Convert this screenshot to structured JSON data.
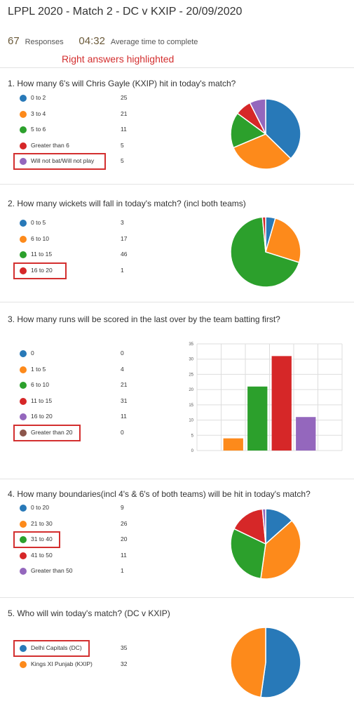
{
  "header": {
    "title": "LPPL 2020 - Match 2 - DC v KXIP - 20/09/2020",
    "responses_count": "67",
    "responses_label": "Responses",
    "avg_time": "04:32",
    "avg_time_label": "Average time to complete",
    "note": "Right answers highlighted"
  },
  "colors": {
    "blue": "#2879b8",
    "orange": "#fd8a1b",
    "green": "#2ca02c",
    "red": "#d62728",
    "purple": "#9467bd",
    "brown": "#8c564b",
    "highlight": "#d32f2f"
  },
  "chart_data": [
    {
      "type": "pie",
      "title": "1.  How many 6's will Chris Gayle (KXIP) hit in today's match?",
      "categories": [
        "0 to 2",
        "3 to 4",
        "5 to 6",
        "Greater than 6",
        "Will not bat/Will not play"
      ],
      "values": [
        25,
        21,
        11,
        5,
        5
      ],
      "highlighted": "Will not bat/Will not play"
    },
    {
      "type": "pie",
      "title": "2.  How many wickets will fall in today's match? (incl both teams)",
      "categories": [
        "0 to 5",
        "6 to 10",
        "11 to 15",
        "16 to 20"
      ],
      "values": [
        3,
        17,
        46,
        1
      ],
      "highlighted": "16 to 20"
    },
    {
      "type": "bar",
      "title": "3.  How many runs will be scored in the last over by the team batting first?",
      "categories": [
        "0",
        "1 to 5",
        "6 to 10",
        "11 to 15",
        "16 to 20",
        "Greater than 20"
      ],
      "values": [
        0,
        4,
        21,
        31,
        11,
        0
      ],
      "ylim": [
        0,
        35
      ],
      "yticks": [
        "0",
        "5",
        "10",
        "15",
        "20",
        "25",
        "30",
        "35"
      ],
      "grid": true,
      "highlighted": "Greater than 20"
    },
    {
      "type": "pie",
      "title": "4.  How many boundaries(incl 4's & 6's of both teams) will be hit in today's match?",
      "categories": [
        "0 to 20",
        "21 to 30",
        "31 to 40",
        "41 to 50",
        "Greater than 50"
      ],
      "values": [
        9,
        26,
        20,
        11,
        1
      ],
      "highlighted": "31 to 40"
    },
    {
      "type": "pie",
      "title": "5.  Who will win today's match? (DC v KXIP)",
      "categories": [
        "Delhi Capitals (DC)",
        "Kings XI Punjab (KXIP)"
      ],
      "values": [
        35,
        32
      ],
      "highlighted": "Delhi Capitals (DC)"
    }
  ]
}
